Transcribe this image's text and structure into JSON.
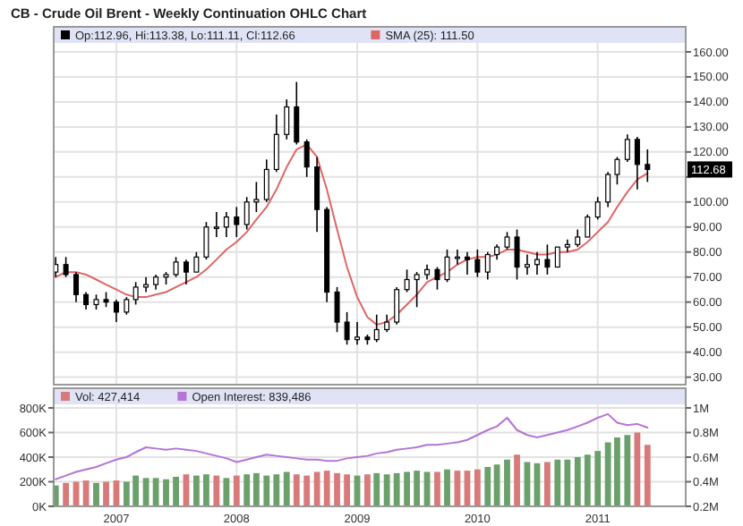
{
  "chart_data": [
    {
      "type": "candlestick",
      "title": "CB - Crude Oil Brent - Weekly Continuation OHLC Chart",
      "x": [
        "2006-07",
        "2006-08",
        "2006-09",
        "2006-10",
        "2006-11",
        "2006-12",
        "2007-01",
        "2007-02",
        "2007-03",
        "2007-04",
        "2007-05",
        "2007-06",
        "2007-07",
        "2007-08",
        "2007-09",
        "2007-10",
        "2007-11",
        "2007-12",
        "2008-01",
        "2008-02",
        "2008-03",
        "2008-04",
        "2008-05",
        "2008-06",
        "2008-07",
        "2008-08",
        "2008-09",
        "2008-10",
        "2008-11",
        "2008-12",
        "2009-01",
        "2009-02",
        "2009-03",
        "2009-04",
        "2009-05",
        "2009-06",
        "2009-07",
        "2009-08",
        "2009-09",
        "2009-10",
        "2009-11",
        "2009-12",
        "2010-01",
        "2010-02",
        "2010-03",
        "2010-04",
        "2010-05",
        "2010-06",
        "2010-07",
        "2010-08",
        "2010-09",
        "2010-10",
        "2010-11",
        "2010-12",
        "2011-01",
        "2011-02",
        "2011-03",
        "2011-04",
        "2011-05",
        "2011-06"
      ],
      "series": [
        {
          "name": "Op:112.96, Hi:113.38, Lo:111.11, Cl:112.66",
          "color": "#000000",
          "ohlc": [
            [
              72,
              78,
              70,
              75
            ],
            [
              75,
              78,
              70,
              71
            ],
            [
              71,
              72,
              60,
              63
            ],
            [
              63,
              64,
              57,
              59
            ],
            [
              59,
              63,
              57,
              61
            ],
            [
              61,
              64,
              58,
              60
            ],
            [
              60,
              61,
              52,
              56
            ],
            [
              56,
              62,
              55,
              61
            ],
            [
              61,
              68,
              59,
              66
            ],
            [
              66,
              70,
              64,
              67
            ],
            [
              67,
              71,
              65,
              70
            ],
            [
              70,
              72,
              67,
              71
            ],
            [
              71,
              78,
              70,
              76
            ],
            [
              76,
              77,
              67,
              72
            ],
            [
              72,
              80,
              72,
              78
            ],
            [
              78,
              92,
              77,
              90
            ],
            [
              90,
              96,
              86,
              90
            ],
            [
              90,
              96,
              86,
              94
            ],
            [
              94,
              98,
              86,
              91
            ],
            [
              91,
              102,
              89,
              100
            ],
            [
              100,
              108,
              96,
              101
            ],
            [
              101,
              117,
              100,
              113
            ],
            [
              113,
              135,
              112,
              127
            ],
            [
              127,
              141,
              125,
              138
            ],
            [
              138,
              148,
              123,
              124
            ],
            [
              124,
              125,
              110,
              114
            ],
            [
              114,
              118,
              88,
              97
            ],
            [
              97,
              98,
              60,
              64
            ],
            [
              64,
              66,
              48,
              52
            ],
            [
              52,
              56,
              43,
              45
            ],
            [
              45,
              52,
              43,
              46
            ],
            [
              46,
              47,
              43,
              45
            ],
            [
              45,
              55,
              44,
              49
            ],
            [
              49,
              55,
              48,
              52
            ],
            [
              52,
              66,
              51,
              65
            ],
            [
              65,
              73,
              64,
              69
            ],
            [
              69,
              72,
              58,
              71
            ],
            [
              71,
              75,
              69,
              73
            ],
            [
              73,
              74,
              65,
              69
            ],
            [
              69,
              81,
              68,
              78
            ],
            [
              78,
              81,
              75,
              78
            ],
            [
              78,
              80,
              71,
              77
            ],
            [
              77,
              81,
              70,
              72
            ],
            [
              72,
              80,
              69,
              79
            ],
            [
              79,
              83,
              77,
              82
            ],
            [
              82,
              88,
              81,
              86
            ],
            [
              86,
              89,
              69,
              74
            ],
            [
              74,
              79,
              71,
              75
            ],
            [
              75,
              80,
              71,
              77
            ],
            [
              77,
              83,
              71,
              74
            ],
            [
              74,
              82,
              74,
              82
            ],
            [
              82,
              85,
              80,
              83
            ],
            [
              83,
              89,
              82,
              86
            ],
            [
              86,
              95,
              86,
              94
            ],
            [
              94,
              102,
              93,
              100
            ],
            [
              100,
              112,
              98,
              111
            ],
            [
              111,
              118,
              107,
              117
            ],
            [
              117,
              127,
              116,
              125
            ],
            [
              125,
              126,
              105,
              115
            ],
            [
              115,
              121,
              108,
              113
            ]
          ]
        },
        {
          "name": "SMA (25): 111.50",
          "type": "line",
          "color": "#e06666",
          "values": [
            70,
            72,
            72,
            71,
            69,
            67,
            65,
            63,
            62,
            62,
            63,
            64,
            66,
            68,
            70,
            73,
            77,
            81,
            84,
            88,
            93,
            98,
            105,
            114,
            121,
            123,
            118,
            105,
            89,
            74,
            62,
            54,
            51,
            52,
            55,
            59,
            63,
            68,
            70,
            72,
            75,
            77,
            78,
            78,
            79,
            81,
            81,
            80,
            79,
            79,
            80,
            80,
            81,
            84,
            88,
            92,
            98,
            104,
            109,
            111.5
          ]
        }
      ],
      "xlim": [
        "2006-06-25",
        "2011-09-25"
      ],
      "xticks": [
        "2007",
        "2008",
        "2009",
        "2010",
        "2011"
      ],
      "ylim": [
        27,
        170
      ],
      "yticks": [
        {
          "value": 30,
          "label": "30.00"
        },
        {
          "value": 40,
          "label": "40.00"
        },
        {
          "value": 50,
          "label": "50.00"
        },
        {
          "value": 60,
          "label": "60.00"
        },
        {
          "value": 70,
          "label": "70.00"
        },
        {
          "value": 80,
          "label": "80.00"
        },
        {
          "value": 90,
          "label": "90.00"
        },
        {
          "value": 100,
          "label": "100.00"
        },
        {
          "value": 110,
          "label": null
        },
        {
          "value": 120,
          "label": "120.00"
        },
        {
          "value": 130,
          "label": "130.00"
        },
        {
          "value": 140,
          "label": "140.00"
        },
        {
          "value": 150,
          "label": "150.00"
        },
        {
          "value": 160,
          "label": "160.00"
        }
      ],
      "annotations": [
        "112.68"
      ],
      "grid": true,
      "legend": "top left",
      "tick_labels": "y"
    },
    {
      "type": "bar",
      "x": [
        "2006-07",
        "2006-08",
        "2006-09",
        "2006-10",
        "2006-11",
        "2006-12",
        "2007-01",
        "2007-02",
        "2007-03",
        "2007-04",
        "2007-05",
        "2007-06",
        "2007-07",
        "2007-08",
        "2007-09",
        "2007-10",
        "2007-11",
        "2007-12",
        "2008-01",
        "2008-02",
        "2008-03",
        "2008-04",
        "2008-05",
        "2008-06",
        "2008-07",
        "2008-08",
        "2008-09",
        "2008-10",
        "2008-11",
        "2008-12",
        "2009-01",
        "2009-02",
        "2009-03",
        "2009-04",
        "2009-05",
        "2009-06",
        "2009-07",
        "2009-08",
        "2009-09",
        "2009-10",
        "2009-11",
        "2009-12",
        "2010-01",
        "2010-02",
        "2010-03",
        "2010-04",
        "2010-05",
        "2010-06",
        "2010-07",
        "2010-08",
        "2010-09",
        "2010-10",
        "2010-11",
        "2010-12",
        "2011-01",
        "2011-02",
        "2011-03",
        "2011-04",
        "2011-05",
        "2011-06"
      ],
      "series": [
        {
          "name": "Vol: 427,414",
          "color": "#d97a7a",
          "values": [
            170000,
            190000,
            200000,
            210000,
            190000,
            200000,
            210000,
            200000,
            250000,
            230000,
            230000,
            220000,
            240000,
            260000,
            250000,
            260000,
            250000,
            230000,
            250000,
            260000,
            270000,
            250000,
            260000,
            280000,
            260000,
            250000,
            280000,
            290000,
            270000,
            260000,
            250000,
            260000,
            270000,
            260000,
            270000,
            280000,
            290000,
            280000,
            280000,
            300000,
            290000,
            290000,
            300000,
            320000,
            340000,
            380000,
            420000,
            360000,
            350000,
            360000,
            380000,
            380000,
            400000,
            420000,
            450000,
            520000,
            560000,
            580000,
            600000,
            500000
          ],
          "colors": [
            "#6aa06a",
            "#d97a7a",
            "#d97a7a",
            "#d97a7a",
            "#6aa06a",
            "#d97a7a",
            "#d97a7a",
            "#6aa06a",
            "#6aa06a",
            "#6aa06a",
            "#6aa06a",
            "#6aa06a",
            "#6aa06a",
            "#d97a7a",
            "#6aa06a",
            "#6aa06a",
            "#d97a7a",
            "#6aa06a",
            "#d97a7a",
            "#6aa06a",
            "#6aa06a",
            "#6aa06a",
            "#6aa06a",
            "#6aa06a",
            "#d97a7a",
            "#d97a7a",
            "#d97a7a",
            "#d97a7a",
            "#d97a7a",
            "#d97a7a",
            "#6aa06a",
            "#d97a7a",
            "#6aa06a",
            "#6aa06a",
            "#6aa06a",
            "#6aa06a",
            "#6aa06a",
            "#6aa06a",
            "#d97a7a",
            "#6aa06a",
            "#d97a7a",
            "#d97a7a",
            "#d97a7a",
            "#6aa06a",
            "#6aa06a",
            "#6aa06a",
            "#d97a7a",
            "#6aa06a",
            "#6aa06a",
            "#d97a7a",
            "#6aa06a",
            "#6aa06a",
            "#6aa06a",
            "#6aa06a",
            "#6aa06a",
            "#6aa06a",
            "#6aa06a",
            "#6aa06a",
            "#d97a7a",
            "#d97a7a"
          ]
        },
        {
          "name": "Open Interest: 839,486",
          "type": "line",
          "axis": "y2",
          "color": "#b575d6",
          "values": [
            420000,
            450000,
            480000,
            500000,
            520000,
            550000,
            580000,
            600000,
            640000,
            680000,
            670000,
            660000,
            670000,
            660000,
            650000,
            630000,
            610000,
            590000,
            560000,
            580000,
            600000,
            620000,
            610000,
            600000,
            590000,
            580000,
            580000,
            570000,
            570000,
            590000,
            600000,
            610000,
            630000,
            640000,
            660000,
            670000,
            680000,
            700000,
            700000,
            710000,
            720000,
            740000,
            780000,
            820000,
            850000,
            920000,
            820000,
            780000,
            760000,
            780000,
            800000,
            820000,
            850000,
            880000,
            920000,
            950000,
            880000,
            860000,
            870000,
            840000
          ]
        }
      ],
      "xlim": [
        "2006-06-25",
        "2011-09-25"
      ],
      "xticks": [
        "2007",
        "2008",
        "2009",
        "2010",
        "2011"
      ],
      "ylim": [
        0,
        960000
      ],
      "yticks": [
        {
          "value": 0,
          "label": "0K"
        },
        {
          "value": 200000,
          "label": "200K"
        },
        {
          "value": 400000,
          "label": "400K"
        },
        {
          "value": 600000,
          "label": "600K"
        },
        {
          "value": 800000,
          "label": "800K"
        }
      ],
      "y2lim": [
        200000,
        1160000
      ],
      "y2ticks": [
        {
          "value": 200000,
          "label": "0.2M"
        },
        {
          "value": 400000,
          "label": "0.4M"
        },
        {
          "value": 600000,
          "label": "0.6M"
        },
        {
          "value": 800000,
          "label": "0.8M"
        },
        {
          "value": 1000000,
          "label": "1M"
        }
      ],
      "grid": true,
      "legend": "top left"
    }
  ]
}
